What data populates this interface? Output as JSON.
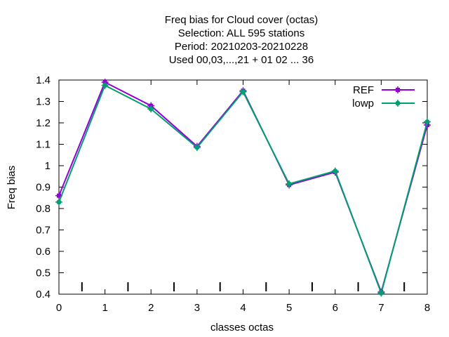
{
  "chart_data": {
    "type": "line",
    "title_lines": [
      "Freq bias  for Cloud cover (octas)",
      "Selection: ALL    595 stations",
      "Period: 20210203-20210228",
      "Used  00,03,...,21  + 01 02 ... 36"
    ],
    "xlabel": "classes octas",
    "ylabel": "Freq bias",
    "x": [
      0,
      1,
      2,
      3,
      4,
      5,
      6,
      7,
      8
    ],
    "xlim": [
      0,
      8
    ],
    "ylim": [
      0.4,
      1.4
    ],
    "xticks": [
      "0",
      "1",
      "2",
      "3",
      "4",
      "5",
      "6",
      "7",
      "8"
    ],
    "yticks": [
      "0.4",
      "0.5",
      "0.6",
      "0.7",
      "0.8",
      "0.9",
      "1",
      "1.1",
      "1.2",
      "1.3",
      "1.4"
    ],
    "ytick_values": [
      0.4,
      0.5,
      0.6,
      0.7,
      0.8,
      0.9,
      1.0,
      1.1,
      1.2,
      1.3,
      1.4
    ],
    "minor_marks_x": [
      0.5,
      1.5,
      2.5,
      3.5,
      4.5,
      5.5,
      6.5,
      7.5
    ],
    "grid": false,
    "legend_position": "top-right",
    "series": [
      {
        "name": "REF",
        "color": "#9400d3",
        "marker": "filled-square",
        "values": [
          0.86,
          1.39,
          1.28,
          1.09,
          1.35,
          0.91,
          0.97,
          0.41,
          1.19
        ]
      },
      {
        "name": "lowp",
        "color": "#009e73",
        "marker": "filled-circle",
        "values": [
          0.83,
          1.375,
          1.265,
          1.085,
          1.345,
          0.915,
          0.975,
          0.405,
          1.205
        ]
      }
    ]
  }
}
